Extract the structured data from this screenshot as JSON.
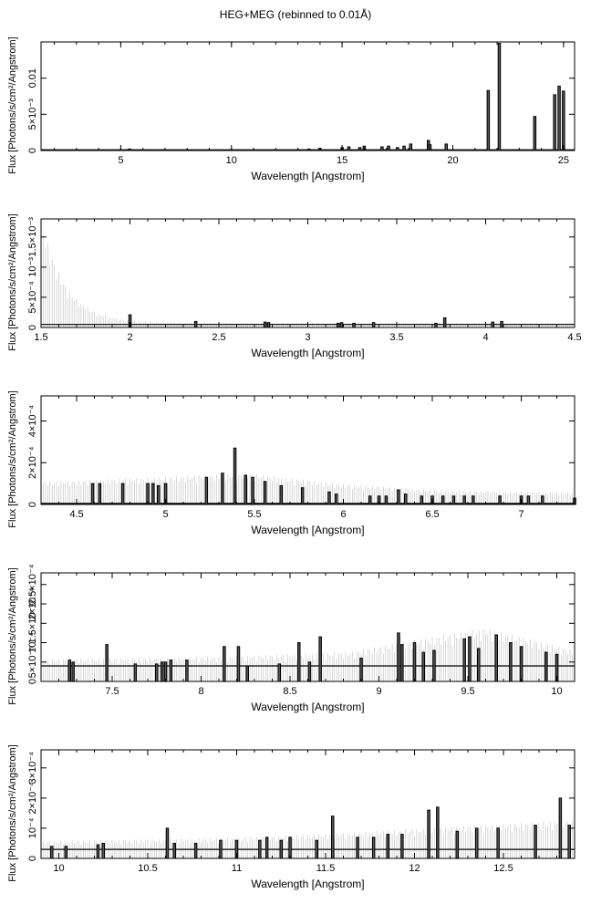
{
  "figure_title": "HEG+MEG (rebinned to 0.01Å)",
  "chart_data": [
    {
      "type": "line",
      "title": "",
      "xlabel": "Wavelength [Angstrom]",
      "ylabel": "Flux [Photons/s/cm²/Angstrom]",
      "xlim": [
        1.4,
        25.5
      ],
      "ylim": [
        0,
        0.015
      ],
      "xticks": [
        5,
        10,
        15,
        20,
        25
      ],
      "xtick_labels": [
        "5",
        "10",
        "15",
        "20",
        "25"
      ],
      "yticks": [
        0,
        0.005,
        0.01
      ],
      "ytick_labels": [
        "0",
        "5×10⁻³",
        "0.01"
      ],
      "series": [
        {
          "style": "histogram",
          "x": [
            1.5,
            5.4,
            13.5,
            14.0,
            15.0,
            15.3,
            15.8,
            16.0,
            16.8,
            17.1,
            17.5,
            17.8,
            18.1,
            18.9,
            18.97,
            19.7,
            21.6,
            22.1,
            23.7,
            24.6,
            24.8,
            25.0
          ],
          "y": [
            0.0001,
            0.00022,
            0.0002,
            0.0003,
            0.0004,
            0.0005,
            0.0004,
            0.0006,
            0.0005,
            0.0006,
            0.0004,
            0.0006,
            0.0009,
            0.0014,
            0.0008,
            0.0009,
            0.0083,
            0.0148,
            0.0047,
            0.0077,
            0.0089,
            0.0082
          ],
          "baseline": 0.0001
        }
      ],
      "errors": []
    },
    {
      "type": "line",
      "title": "",
      "xlabel": "Wavelength [Angstrom]",
      "ylabel": "Flux [Photons/s/cm²/Angstrom]",
      "xlim": [
        1.5,
        4.5
      ],
      "ylim": [
        0,
        0.0018
      ],
      "xticks": [
        1.5,
        2,
        2.5,
        3,
        3.5,
        4,
        4.5
      ],
      "xtick_labels": [
        "1.5",
        "2",
        "2.5",
        "3",
        "3.5",
        "4",
        "4.5"
      ],
      "yticks": [
        0,
        0.0005,
        0.001,
        0.0015
      ],
      "ytick_labels": [
        "0",
        "5×10⁻⁴",
        "10⁻³",
        "1.5×10⁻³"
      ],
      "series": [
        {
          "style": "histogram",
          "x": [
            2.0,
            2.37,
            2.76,
            2.78,
            3.17,
            3.19,
            3.26,
            3.37,
            3.72,
            3.77,
            4.04,
            4.09
          ],
          "y": [
            0.00021,
            0.0001,
            9e-05,
            8e-05,
            7e-05,
            8e-05,
            7e-05,
            8e-05,
            7e-05,
            0.00016,
            9e-05,
            0.0001
          ],
          "baseline": 5e-05
        }
      ],
      "errors": [
        {
          "x": [
            1.5,
            4.5
          ],
          "envelope": "exp",
          "peak": 0.0016,
          "floor": 7e-05,
          "decay": 7.5
        }
      ]
    },
    {
      "type": "line",
      "title": "",
      "xlabel": "Wavelength [Angstrom]",
      "ylabel": "Flux [Photons/s/cm²/Angstrom]",
      "xlim": [
        4.3,
        7.3
      ],
      "ylim": [
        0,
        0.00052
      ],
      "xticks": [
        4.5,
        5,
        5.5,
        6,
        6.5,
        7
      ],
      "xtick_labels": [
        "4.5",
        "5",
        "5.5",
        "6",
        "6.5",
        "7"
      ],
      "yticks": [
        0,
        0.0002,
        0.0004
      ],
      "ytick_labels": [
        "0",
        "2×10⁻⁴",
        "4×10⁻⁴"
      ],
      "series": [
        {
          "style": "histogram",
          "x": [
            4.59,
            4.63,
            4.76,
            4.9,
            4.93,
            4.96,
            5.0,
            5.23,
            5.32,
            5.39,
            5.45,
            5.49,
            5.56,
            5.65,
            5.77,
            5.92,
            5.96,
            6.15,
            6.2,
            6.24,
            6.31,
            6.35,
            6.44,
            6.5,
            6.56,
            6.62,
            6.68,
            6.73,
            6.88,
            7.0,
            7.04,
            7.12,
            7.3
          ],
          "y": [
            0.0001,
            0.0001,
            0.0001,
            0.0001,
            0.0001,
            9e-05,
            0.0001,
            0.00013,
            0.00015,
            0.00027,
            0.00014,
            0.00013,
            0.00011,
            9e-05,
            8e-05,
            6e-05,
            5e-05,
            4e-05,
            4e-05,
            4e-05,
            7e-05,
            5e-05,
            4e-05,
            4e-05,
            4e-05,
            4e-05,
            4e-05,
            4e-05,
            4e-05,
            4e-05,
            4e-05,
            4e-05,
            3e-05
          ],
          "baseline": 5e-06
        }
      ],
      "errors": [
        {
          "x": [
            4.3,
            7.3
          ],
          "envelope": "hump",
          "levels": [
            [
              4.3,
              9.5e-05
            ],
            [
              5.0,
              0.000115
            ],
            [
              5.45,
              0.00013
            ],
            [
              6.0,
              8.5e-05
            ],
            [
              6.5,
              6e-05
            ],
            [
              7.3,
              5e-05
            ]
          ]
        }
      ]
    },
    {
      "type": "line",
      "title": "",
      "xlabel": "Wavelength [Angstrom]",
      "ylabel": "Flux [Photons/s/cm²/Angstrom]",
      "xlim": [
        7.1,
        10.1
      ],
      "ylim": [
        0,
        0.00028
      ],
      "xticks": [
        7.5,
        8,
        8.5,
        9,
        9.5,
        10
      ],
      "xtick_labels": [
        "7.5",
        "8",
        "8.5",
        "9",
        "9.5",
        "10"
      ],
      "yticks": [
        0,
        5e-05,
        0.0001,
        0.00015,
        0.0002,
        0.00025
      ],
      "ytick_labels": [
        "0",
        "5×10⁻⁵",
        "10⁻⁴",
        "1.5×10⁻⁴",
        "2×10⁻⁴",
        "2.5×10⁻⁴"
      ],
      "series": [
        {
          "style": "histogram",
          "x": [
            7.26,
            7.28,
            7.47,
            7.63,
            7.75,
            7.78,
            7.8,
            7.83,
            7.92,
            8.13,
            8.21,
            8.26,
            8.44,
            8.55,
            8.61,
            8.67,
            8.9,
            9.11,
            9.13,
            9.2,
            9.25,
            9.31,
            9.48,
            9.51,
            9.56,
            9.66,
            9.74,
            9.8,
            9.94,
            10.0
          ],
          "y": [
            5.5e-05,
            5e-05,
            9.5e-05,
            4.5e-05,
            4.5e-05,
            5e-05,
            5e-05,
            5.5e-05,
            5.5e-05,
            9e-05,
            9e-05,
            4e-05,
            4.5e-05,
            0.0001,
            5e-05,
            0.000115,
            6e-05,
            0.000125,
            9.5e-05,
            0.0001,
            7.5e-05,
            8e-05,
            0.00011,
            0.000115,
            8.5e-05,
            0.00012,
            0.0001,
            9e-05,
            7.5e-05,
            7e-05
          ],
          "baseline": 4e-05
        }
      ],
      "errors": [
        {
          "x": [
            7.1,
            10.1
          ],
          "envelope": "hump",
          "levels": [
            [
              7.1,
              5e-05
            ],
            [
              8.0,
              5.5e-05
            ],
            [
              8.8,
              6.5e-05
            ],
            [
              9.3,
              0.0001
            ],
            [
              9.6,
              0.00012
            ],
            [
              10.1,
              7e-05
            ]
          ]
        }
      ]
    },
    {
      "type": "line",
      "title": "",
      "xlabel": "Wavelength [Angstrom]",
      "ylabel": "Flux [Photons/s/cm²/Angstrom]",
      "xlim": [
        9.9,
        12.9
      ],
      "ylim": [
        0,
        0.00036
      ],
      "xticks": [
        10,
        10.5,
        11,
        11.5,
        12,
        12.5
      ],
      "xtick_labels": [
        "10",
        "10.5",
        "11",
        "11.5",
        "12",
        "12.5"
      ],
      "yticks": [
        0,
        0.0001,
        0.0002,
        0.0003
      ],
      "ytick_labels": [
        "0",
        "10⁻⁴",
        "2×10⁻⁴",
        "3×10⁻⁴"
      ],
      "series": [
        {
          "style": "histogram",
          "x": [
            9.96,
            10.04,
            10.22,
            10.25,
            10.61,
            10.65,
            10.77,
            10.91,
            11.0,
            11.13,
            11.17,
            11.25,
            11.3,
            11.45,
            11.54,
            11.68,
            11.77,
            11.85,
            11.93,
            12.08,
            12.13,
            12.24,
            12.35,
            12.47,
            12.68,
            12.82,
            12.87
          ],
          "y": [
            4e-05,
            4e-05,
            4.5e-05,
            5e-05,
            0.0001,
            5e-05,
            5e-05,
            6e-05,
            6e-05,
            6e-05,
            7e-05,
            6e-05,
            7e-05,
            6e-05,
            0.00014,
            7e-05,
            7e-05,
            8e-05,
            8e-05,
            0.00016,
            0.00017,
            9e-05,
            0.0001,
            0.0001,
            0.00011,
            0.0002,
            0.00011
          ],
          "baseline": 3e-05
        }
      ],
      "errors": [
        {
          "x": [
            9.9,
            12.9
          ],
          "envelope": "hump",
          "levels": [
            [
              9.9,
              5e-05
            ],
            [
              10.5,
              5.5e-05
            ],
            [
              11.0,
              6e-05
            ],
            [
              11.5,
              7e-05
            ],
            [
              12.0,
              8.5e-05
            ],
            [
              12.5,
              0.0001
            ],
            [
              12.9,
              0.00011
            ]
          ]
        }
      ]
    }
  ]
}
